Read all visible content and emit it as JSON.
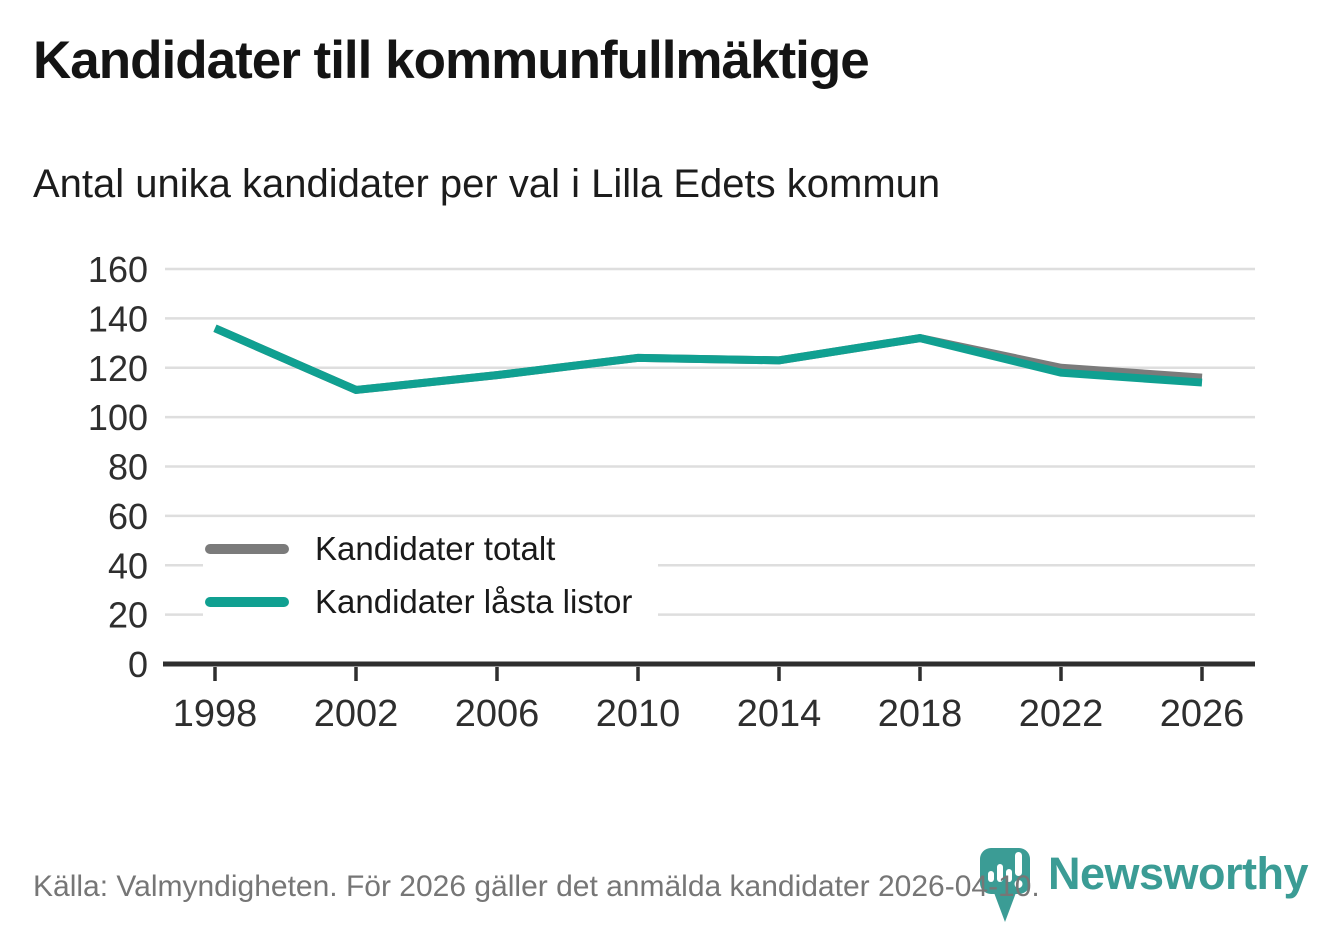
{
  "header": {
    "title": "Kandidater till kommunfullmäktige",
    "subtitle": "Antal unika kandidater per val i Lilla Edets kommun"
  },
  "chart_data": {
    "type": "line",
    "x": [
      1998,
      2002,
      2006,
      2010,
      2014,
      2018,
      2022,
      2026
    ],
    "series": [
      {
        "name": "Kandidater totalt",
        "color": "#7b7b7b",
        "values": [
          136,
          111,
          117,
          124,
          123,
          132,
          120,
          116
        ]
      },
      {
        "name": "Kandidater låsta listor",
        "color": "#10a091",
        "values": [
          136,
          111,
          117,
          124,
          123,
          132,
          118,
          114
        ]
      }
    ],
    "title": "Kandidater till kommunfullmäktige",
    "subtitle": "Antal unika kandidater per val i Lilla Edets kommun",
    "xlabel": "",
    "ylabel": "",
    "ylim": [
      0,
      160
    ],
    "ytick_step": 20,
    "grid": true,
    "legend_position": "inside-left",
    "line_width": 8,
    "gridline_color": "#dedede",
    "axis_color": "#2e2e2e"
  },
  "footer": {
    "source_text": "Källa: Valmyndigheten. För 2026 gäller det anmälda kandidater 2026-04-10.",
    "brand": "Newsworthy",
    "brand_color": "#3b9c95"
  }
}
